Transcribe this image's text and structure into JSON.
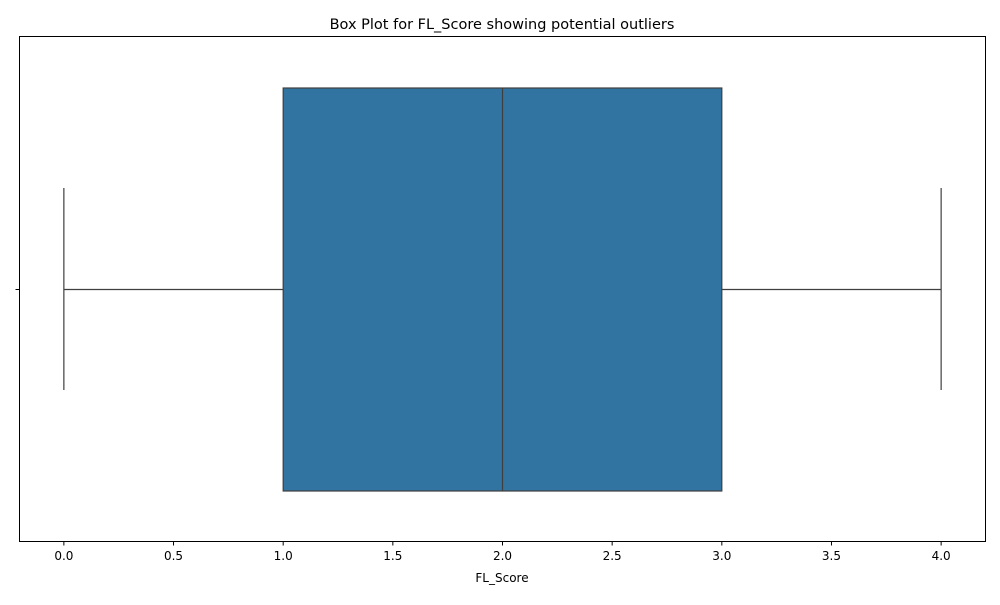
{
  "chart_data": {
    "type": "box",
    "title": "Box Plot for FL_Score showing potential outliers",
    "xlabel": "FL_Score",
    "ylabel": "",
    "orientation": "horizontal",
    "xlim": [
      -0.2,
      4.2
    ],
    "x_ticks": [
      0.0,
      0.5,
      1.0,
      1.5,
      2.0,
      2.5,
      3.0,
      3.5,
      4.0
    ],
    "x_tick_labels": [
      "0.0",
      "0.5",
      "1.0",
      "1.5",
      "2.0",
      "2.5",
      "3.0",
      "3.5",
      "4.0"
    ],
    "grid": false,
    "legend": "none",
    "box": {
      "whisker_low": 0.0,
      "q1": 1.0,
      "median": 2.0,
      "q3": 3.0,
      "whisker_high": 4.0,
      "outliers": []
    },
    "colors": {
      "box_fill": "#3274a1",
      "line": "#3f3f3f",
      "axis": "#000000"
    }
  }
}
